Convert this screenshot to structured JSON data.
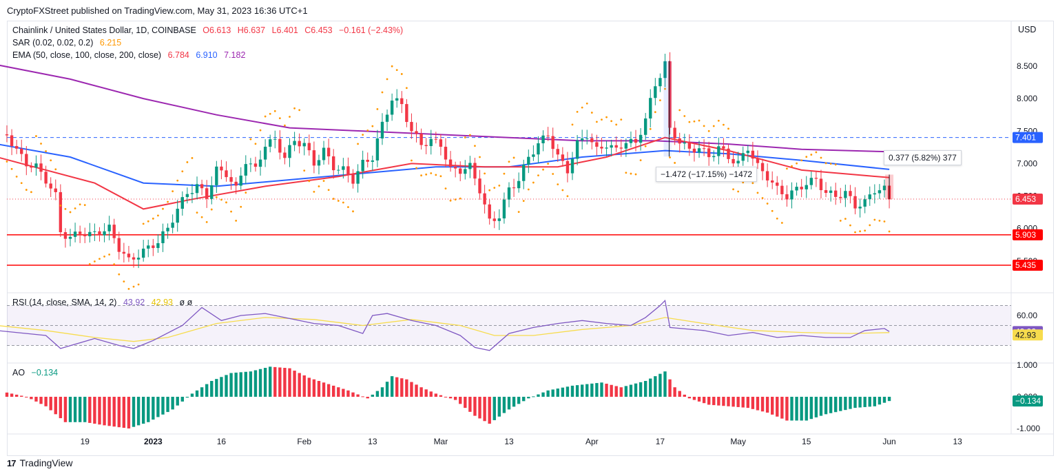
{
  "publisher_line": "CryptoFXStreet published on TradingView.com, May 31, 2023 16:36 UTC+1",
  "footer_brand": "TradingView",
  "footer_logo": "17",
  "currency_label": "USD",
  "legend": {
    "symbol": "Chainlink / United States Dollar, 1D, COINBASE",
    "open": "O6.613",
    "high": "H6.637",
    "low": "L6.401",
    "close": "C6.453",
    "change": "−0.161 (−2.43%)",
    "sar_label": "SAR (0.02, 0.02, 0.2)",
    "sar_value": "6.215",
    "ema_label": "EMA (50, close, 100, close, 200, close)",
    "ema50": "6.784",
    "ema100": "6.910",
    "ema200": "7.182",
    "rsi_label": "RSI (14, close, SMA, 14, 2)",
    "rsi_value": "43.92",
    "rsi_ma_value": "42.93",
    "rsi_extra": "ø  ø",
    "ao_label": "AO",
    "ao_value": "−0.134"
  },
  "measures": {
    "down": "−1.472 (−17.15%) −1472",
    "up": "0.377 (5.82%) 377"
  },
  "price_tags": {
    "level_7401": "7.401",
    "last_price": "6.453",
    "support_1": "5.903",
    "support_2": "5.435",
    "rsi_now": "43.92",
    "rsi_ma": "42.93",
    "ao_now": "−0.134"
  },
  "colors": {
    "up": "#089981",
    "down": "#f23645",
    "ema50": "#f23645",
    "ema100": "#2962ff",
    "ema200": "#9c27b0",
    "sar": "#ff9800",
    "rsi": "#7e57c2",
    "rsi_ma": "#f7dc4d",
    "support": "#ff0000",
    "dashed_level": "#2962ff"
  },
  "chart_data": [
    {
      "type": "candlestick",
      "title": "Chainlink / United States Dollar, 1D, COINBASE",
      "ylabel": "USD",
      "ylim": [
        5.3,
        8.9
      ],
      "y_ticks": [
        "5.500",
        "6.000",
        "6.500",
        "7.000",
        "7.500",
        "8.000",
        "8.500"
      ],
      "x_ticks": [
        "19",
        "2023",
        "16",
        "Feb",
        "13",
        "Mar",
        "13",
        "Apr",
        "17",
        "May",
        "15",
        "Jun",
        "13"
      ],
      "x_tick_days": [
        18,
        32,
        46,
        63,
        77,
        91,
        105,
        122,
        136,
        152,
        166,
        183,
        197
      ],
      "x_range_days": [
        2,
        208
      ],
      "horizontal_levels": [
        7.401,
        5.903,
        5.435
      ],
      "close_path": [
        [
          2,
          7.45
        ],
        [
          4,
          7.2
        ],
        [
          6,
          7.0
        ],
        [
          8,
          6.95
        ],
        [
          10,
          6.75
        ],
        [
          12,
          6.5
        ],
        [
          13,
          5.95
        ],
        [
          15,
          5.85
        ],
        [
          17,
          5.95
        ],
        [
          19,
          5.9
        ],
        [
          21,
          5.95
        ],
        [
          23,
          6.0
        ],
        [
          25,
          5.7
        ],
        [
          27,
          5.5
        ],
        [
          29,
          5.6
        ],
        [
          31,
          5.7
        ],
        [
          33,
          5.8
        ],
        [
          35,
          6.0
        ],
        [
          37,
          6.3
        ],
        [
          39,
          6.55
        ],
        [
          41,
          6.65
        ],
        [
          43,
          6.5
        ],
        [
          45,
          6.9
        ],
        [
          47,
          6.85
        ],
        [
          49,
          6.6
        ],
        [
          51,
          7.05
        ],
        [
          53,
          6.9
        ],
        [
          55,
          7.3
        ],
        [
          57,
          7.35
        ],
        [
          59,
          7.1
        ],
        [
          61,
          7.35
        ],
        [
          63,
          7.3
        ],
        [
          65,
          7.0
        ],
        [
          67,
          7.2
        ],
        [
          69,
          6.95
        ],
        [
          71,
          6.9
        ],
        [
          73,
          6.75
        ],
        [
          75,
          7.0
        ],
        [
          77,
          7.1
        ],
        [
          79,
          7.6
        ],
        [
          81,
          8.0
        ],
        [
          83,
          7.9
        ],
        [
          85,
          7.5
        ],
        [
          87,
          7.3
        ],
        [
          89,
          7.35
        ],
        [
          91,
          7.3
        ],
        [
          93,
          6.9
        ],
        [
          95,
          6.9
        ],
        [
          97,
          6.95
        ],
        [
          99,
          6.6
        ],
        [
          101,
          6.1
        ],
        [
          103,
          6.2
        ],
        [
          105,
          6.6
        ],
        [
          107,
          6.75
        ],
        [
          109,
          7.1
        ],
        [
          111,
          7.3
        ],
        [
          113,
          7.45
        ],
        [
          115,
          7.1
        ],
        [
          117,
          6.9
        ],
        [
          119,
          7.3
        ],
        [
          121,
          7.45
        ],
        [
          123,
          7.2
        ],
        [
          125,
          7.3
        ],
        [
          127,
          7.2
        ],
        [
          129,
          7.35
        ],
        [
          131,
          7.3
        ],
        [
          133,
          7.7
        ],
        [
          135,
          8.2
        ],
        [
          137,
          8.55
        ],
        [
          138,
          7.5
        ],
        [
          140,
          7.35
        ],
        [
          142,
          7.2
        ],
        [
          144,
          7.25
        ],
        [
          146,
          7.1
        ],
        [
          148,
          7.25
        ],
        [
          150,
          7.1
        ],
        [
          152,
          7.0
        ],
        [
          154,
          7.25
        ],
        [
          156,
          6.95
        ],
        [
          158,
          6.8
        ],
        [
          160,
          6.6
        ],
        [
          162,
          6.5
        ],
        [
          164,
          6.6
        ],
        [
          166,
          6.7
        ],
        [
          168,
          6.75
        ],
        [
          170,
          6.55
        ],
        [
          172,
          6.5
        ],
        [
          174,
          6.55
        ],
        [
          176,
          6.35
        ],
        [
          178,
          6.4
        ],
        [
          180,
          6.6
        ],
        [
          182,
          6.6
        ],
        [
          183,
          6.453
        ]
      ],
      "ema50_path": [
        [
          0,
          7.1
        ],
        [
          20,
          6.7
        ],
        [
          30,
          6.3
        ],
        [
          40,
          6.45
        ],
        [
          55,
          6.65
        ],
        [
          70,
          6.8
        ],
        [
          85,
          7.0
        ],
        [
          100,
          6.95
        ],
        [
          115,
          6.95
        ],
        [
          125,
          7.1
        ],
        [
          137,
          7.4
        ],
        [
          150,
          7.2
        ],
        [
          165,
          6.9
        ],
        [
          183,
          6.784
        ]
      ],
      "ema100_path": [
        [
          0,
          7.3
        ],
        [
          15,
          7.1
        ],
        [
          30,
          6.7
        ],
        [
          45,
          6.65
        ],
        [
          60,
          6.75
        ],
        [
          75,
          6.85
        ],
        [
          90,
          6.95
        ],
        [
          105,
          6.95
        ],
        [
          120,
          7.1
        ],
        [
          137,
          7.2
        ],
        [
          150,
          7.15
        ],
        [
          165,
          7.05
        ],
        [
          183,
          6.91
        ]
      ],
      "ema200_path": [
        [
          0,
          8.52
        ],
        [
          15,
          8.3
        ],
        [
          30,
          8.0
        ],
        [
          45,
          7.75
        ],
        [
          60,
          7.55
        ],
        [
          75,
          7.5
        ],
        [
          90,
          7.45
        ],
        [
          105,
          7.4
        ],
        [
          120,
          7.35
        ],
        [
          135,
          7.35
        ],
        [
          150,
          7.3
        ],
        [
          165,
          7.22
        ],
        [
          183,
          7.182
        ]
      ],
      "measure_down": {
        "from_day": 137,
        "to_day": 138,
        "from": 8.58,
        "to": 7.108,
        "text": "−1.472 (−17.15%) −1472"
      },
      "measure_up": {
        "from_day": 183,
        "to_day": 184,
        "from": 6.453,
        "to": 6.83,
        "text": "0.377 (5.82%) 377"
      }
    },
    {
      "type": "line",
      "title": "RSI (14, close, SMA, 14, 2)",
      "y_ticks": [
        "60.00"
      ],
      "ylim": [
        20,
        80
      ],
      "bands": [
        70,
        50,
        30
      ],
      "series": [
        {
          "name": "RSI",
          "values": [
            [
              0,
              45
            ],
            [
              10,
              40
            ],
            [
              13,
              27
            ],
            [
              20,
              37
            ],
            [
              25,
              30
            ],
            [
              28,
              27
            ],
            [
              32,
              35
            ],
            [
              38,
              50
            ],
            [
              42,
              68
            ],
            [
              46,
              55
            ],
            [
              50,
              60
            ],
            [
              55,
              62
            ],
            [
              60,
              57
            ],
            [
              65,
              52
            ],
            [
              70,
              50
            ],
            [
              75,
              42
            ],
            [
              77,
              60
            ],
            [
              80,
              62
            ],
            [
              85,
              55
            ],
            [
              90,
              50
            ],
            [
              95,
              40
            ],
            [
              98,
              28
            ],
            [
              101,
              25
            ],
            [
              105,
              42
            ],
            [
              110,
              48
            ],
            [
              115,
              52
            ],
            [
              120,
              55
            ],
            [
              125,
              52
            ],
            [
              130,
              50
            ],
            [
              133,
              58
            ],
            [
              136,
              70
            ],
            [
              137,
              75
            ],
            [
              138,
              48
            ],
            [
              145,
              45
            ],
            [
              150,
              40
            ],
            [
              155,
              43
            ],
            [
              160,
              38
            ],
            [
              165,
              40
            ],
            [
              170,
              38
            ],
            [
              175,
              38
            ],
            [
              178,
              45
            ],
            [
              182,
              47
            ],
            [
              183,
              43.92
            ]
          ]
        },
        {
          "name": "SMA",
          "values": [
            [
              0,
              50
            ],
            [
              10,
              45
            ],
            [
              20,
              38
            ],
            [
              28,
              34
            ],
            [
              35,
              38
            ],
            [
              45,
              52
            ],
            [
              55,
              58
            ],
            [
              65,
              56
            ],
            [
              75,
              50
            ],
            [
              85,
              56
            ],
            [
              95,
              50
            ],
            [
              102,
              40
            ],
            [
              110,
              40
            ],
            [
              120,
              46
            ],
            [
              130,
              50
            ],
            [
              137,
              58
            ],
            [
              145,
              52
            ],
            [
              155,
              45
            ],
            [
              165,
              43
            ],
            [
              175,
              42
            ],
            [
              183,
              42.93
            ]
          ]
        }
      ]
    },
    {
      "type": "bar",
      "title": "AO",
      "y_ticks": [
        "1.000",
        "0.000",
        "-1.000"
      ],
      "ylim": [
        -1.15,
        1.15
      ],
      "values": [
        [
          0,
          0.2
        ],
        [
          6,
          0.0
        ],
        [
          10,
          -0.3
        ],
        [
          14,
          -0.8
        ],
        [
          18,
          -0.8
        ],
        [
          22,
          -0.9
        ],
        [
          27,
          -1.0
        ],
        [
          31,
          -0.8
        ],
        [
          36,
          -0.4
        ],
        [
          40,
          0.1
        ],
        [
          44,
          0.5
        ],
        [
          48,
          0.75
        ],
        [
          52,
          0.8
        ],
        [
          56,
          0.95
        ],
        [
          60,
          0.9
        ],
        [
          64,
          0.6
        ],
        [
          68,
          0.4
        ],
        [
          72,
          0.2
        ],
        [
          76,
          -0.05
        ],
        [
          79,
          0.3
        ],
        [
          81,
          0.65
        ],
        [
          84,
          0.55
        ],
        [
          87,
          0.3
        ],
        [
          90,
          0.1
        ],
        [
          94,
          -0.1
        ],
        [
          98,
          -0.6
        ],
        [
          101,
          -0.85
        ],
        [
          105,
          -0.4
        ],
        [
          109,
          -0.05
        ],
        [
          113,
          0.2
        ],
        [
          118,
          0.35
        ],
        [
          124,
          0.45
        ],
        [
          128,
          0.3
        ],
        [
          133,
          0.5
        ],
        [
          137,
          0.8
        ],
        [
          139,
          0.3
        ],
        [
          142,
          -0.05
        ],
        [
          146,
          -0.25
        ],
        [
          150,
          -0.3
        ],
        [
          154,
          -0.35
        ],
        [
          158,
          -0.5
        ],
        [
          162,
          -0.75
        ],
        [
          166,
          -0.75
        ],
        [
          170,
          -0.55
        ],
        [
          176,
          -0.35
        ],
        [
          180,
          -0.3
        ],
        [
          183,
          -0.134
        ]
      ]
    }
  ]
}
